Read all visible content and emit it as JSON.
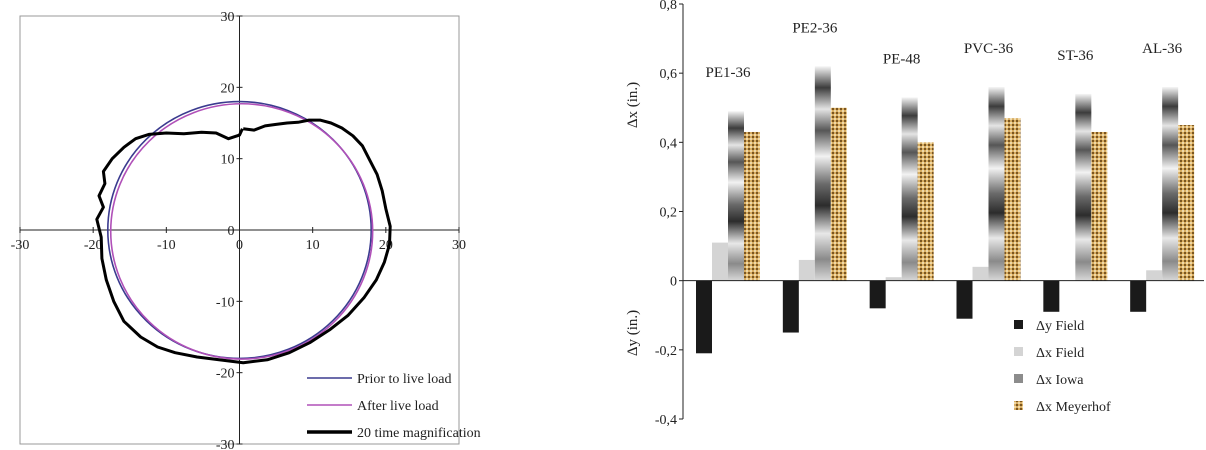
{
  "chart_data": [
    {
      "type": "scatter",
      "title": "",
      "xlim": [
        -30,
        30
      ],
      "ylim": [
        -30,
        30
      ],
      "x_ticks": [
        "-30",
        "-20",
        "-10",
        "0",
        "10",
        "20",
        "30"
      ],
      "y_ticks": [
        "30",
        "20",
        "10",
        "0",
        "-10",
        "-20",
        "-30"
      ],
      "legend_position": "bottom-right",
      "series": [
        {
          "name": "Prior to live load",
          "color": "#3b3b8f",
          "shape": "circle",
          "center": [
            0,
            0
          ],
          "radius": 18
        },
        {
          "name": "After live load",
          "color": "#b050b8",
          "shape": "circle",
          "center": [
            0.3,
            -0.2
          ],
          "radius": 17.9
        },
        {
          "name": "20 time magnification",
          "color": "#000000",
          "points": [
            [
              0.5,
              14.2
            ],
            [
              2,
              14
            ],
            [
              3.5,
              14.6
            ],
            [
              5,
              14.8
            ],
            [
              6.5,
              15
            ],
            [
              8,
              15.1
            ],
            [
              9.5,
              15.4
            ],
            [
              11,
              15.4
            ],
            [
              12.5,
              15
            ],
            [
              14,
              14.3
            ],
            [
              15.5,
              13.2
            ],
            [
              16.8,
              11.8
            ],
            [
              17.8,
              9.8
            ],
            [
              18.8,
              7.8
            ],
            [
              19.5,
              5.5
            ],
            [
              20,
              3
            ],
            [
              20.6,
              0.5
            ],
            [
              20.5,
              -2
            ],
            [
              19.8,
              -4.5
            ],
            [
              18.7,
              -7
            ],
            [
              17,
              -9.5
            ],
            [
              14.8,
              -12
            ],
            [
              12.3,
              -14
            ],
            [
              9.6,
              -15.8
            ],
            [
              6.8,
              -17.2
            ],
            [
              3.8,
              -18.2
            ],
            [
              0.5,
              -18.6
            ],
            [
              -2.8,
              -18.2
            ],
            [
              -5.8,
              -17.8
            ],
            [
              -8.8,
              -17.2
            ],
            [
              -11.2,
              -16.4
            ],
            [
              -13.5,
              -15
            ],
            [
              -15.8,
              -12.8
            ],
            [
              -17.2,
              -10
            ],
            [
              -18.2,
              -7
            ],
            [
              -18.8,
              -4
            ],
            [
              -18.9,
              -1
            ],
            [
              -19.5,
              1.5
            ],
            [
              -18.6,
              3.2
            ],
            [
              -19.2,
              4.8
            ],
            [
              -18.4,
              6.5
            ],
            [
              -18.6,
              8.2
            ],
            [
              -17.4,
              10
            ],
            [
              -15.8,
              11.6
            ],
            [
              -14.2,
              12.8
            ],
            [
              -12.4,
              13.4
            ],
            [
              -10,
              13.6
            ],
            [
              -7.6,
              13.5
            ],
            [
              -5.2,
              13.7
            ],
            [
              -3.2,
              13.6
            ],
            [
              -1.5,
              12.8
            ],
            [
              0,
              13.3
            ],
            [
              0.4,
              14.2
            ]
          ]
        }
      ]
    },
    {
      "type": "bar",
      "title": "",
      "ylabel_upper": "Δx (in.)",
      "ylabel_lower": "Δy (in.)",
      "ylim": [
        -0.4,
        0.8
      ],
      "y_ticks": [
        "0,8",
        "0,6",
        "0,4",
        "0,2",
        "0",
        "-0,2",
        "-0,4"
      ],
      "legend_position": "bottom-right",
      "categories": [
        "PE1-36",
        "PE2-36",
        "PE-48",
        "PVC-36",
        "ST-36",
        "AL-36"
      ],
      "series": [
        {
          "name": "Δy Field",
          "color": "#1a1a1a",
          "values": [
            -0.21,
            -0.15,
            -0.08,
            -0.11,
            -0.09,
            -0.09
          ]
        },
        {
          "name": "Δx Field",
          "color": "#d4d4d4",
          "values": [
            0.11,
            0.06,
            0.01,
            0.04,
            0.0,
            0.03
          ]
        },
        {
          "name": "Δx Iowa",
          "color": "#8c8c8c",
          "values": [
            0.49,
            0.62,
            0.53,
            0.56,
            0.54,
            0.56
          ]
        },
        {
          "name": "Δx Meyerhof",
          "color": "#c89a4a",
          "values": [
            0.43,
            0.5,
            0.4,
            0.47,
            0.43,
            0.45
          ]
        }
      ]
    }
  ]
}
